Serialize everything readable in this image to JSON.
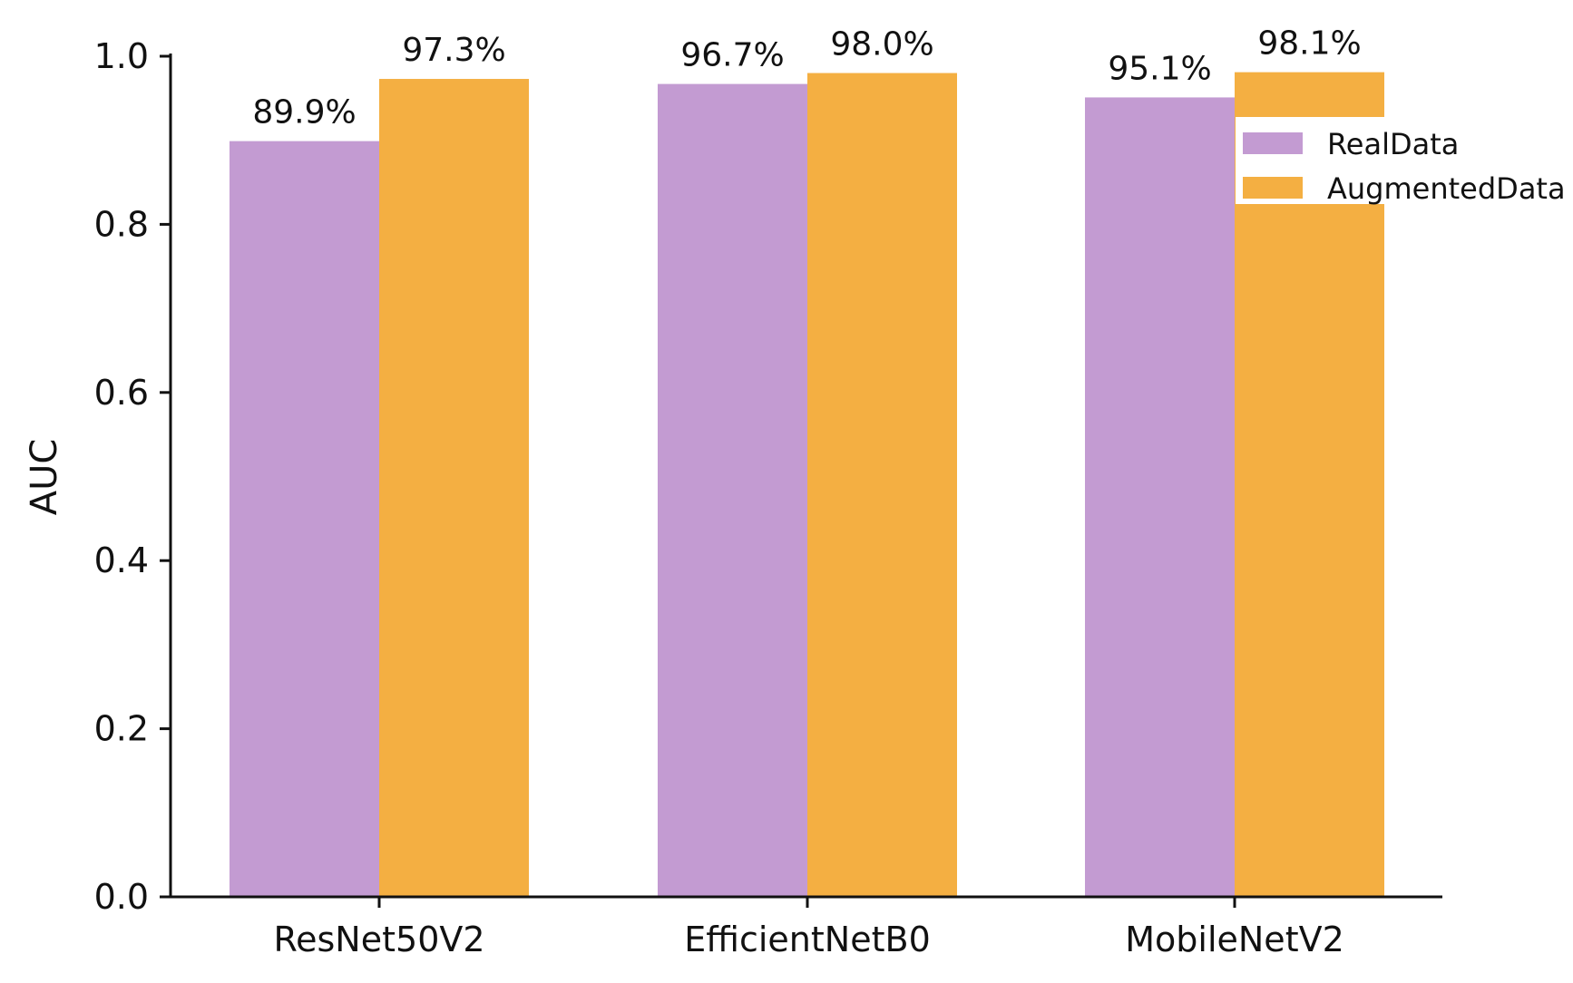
{
  "chart_data": {
    "type": "bar",
    "categories": [
      "ResNet50V2",
      "EfficientNetB0",
      "MobileNetV2"
    ],
    "series": [
      {
        "name": "RealData",
        "values": [
          0.899,
          0.967,
          0.951
        ],
        "labels": [
          "89.9%",
          "96.7%",
          "95.1%"
        ],
        "color": "#c39bd2"
      },
      {
        "name": "AugmentedData",
        "values": [
          0.973,
          0.98,
          0.981
        ],
        "labels": [
          "97.3%",
          "98.0%",
          "98.1%"
        ],
        "color": "#f4af42"
      }
    ],
    "title": "",
    "xlabel": "",
    "ylabel": "AUC",
    "ylim": [
      0,
      1.0
    ],
    "yticks": [
      0.0,
      0.2,
      0.4,
      0.6,
      0.8,
      1.0
    ],
    "ytick_labels": [
      "0.0",
      "0.2",
      "0.4",
      "0.6",
      "0.8",
      "1.0"
    ],
    "grid": false,
    "legend_position": "right"
  }
}
